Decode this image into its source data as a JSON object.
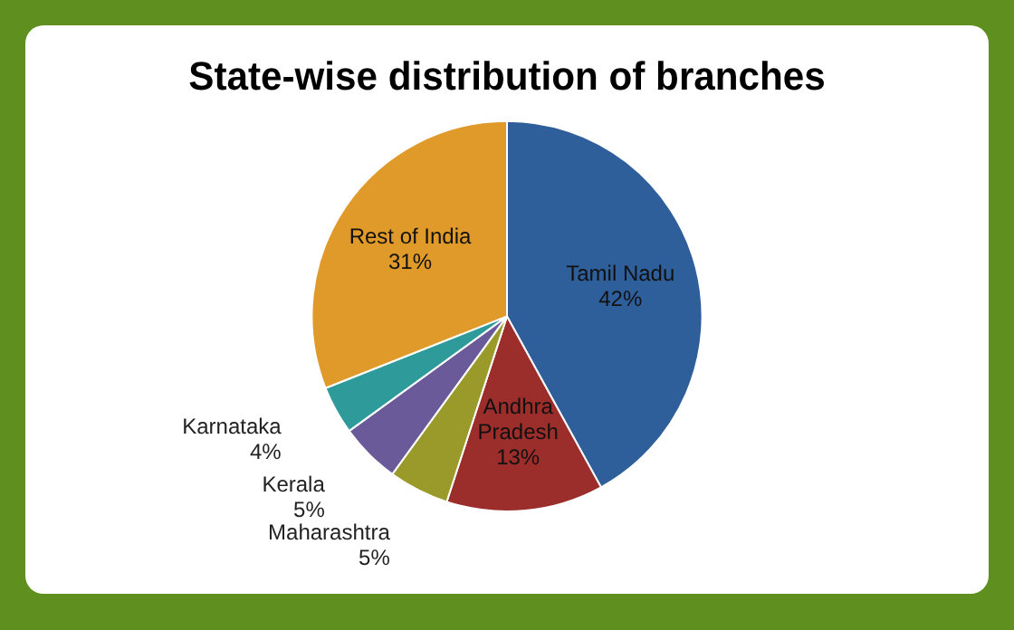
{
  "chart_data": {
    "type": "pie",
    "title": "State-wise distribution of branches",
    "categories": [
      "Tamil Nadu",
      "Andhra Pradesh",
      "Maharashtra",
      "Kerala",
      "Karnataka",
      "Rest of India"
    ],
    "values": [
      42,
      13,
      5,
      5,
      4,
      31
    ],
    "colors": [
      "#2e5f9a",
      "#9b2d2a",
      "#9a9a2a",
      "#6a5a9a",
      "#2e9a9a",
      "#e09a2a"
    ],
    "value_labels": [
      "42%",
      "13%",
      "5%",
      "5%",
      "4%",
      "31%"
    ],
    "legend": false
  }
}
